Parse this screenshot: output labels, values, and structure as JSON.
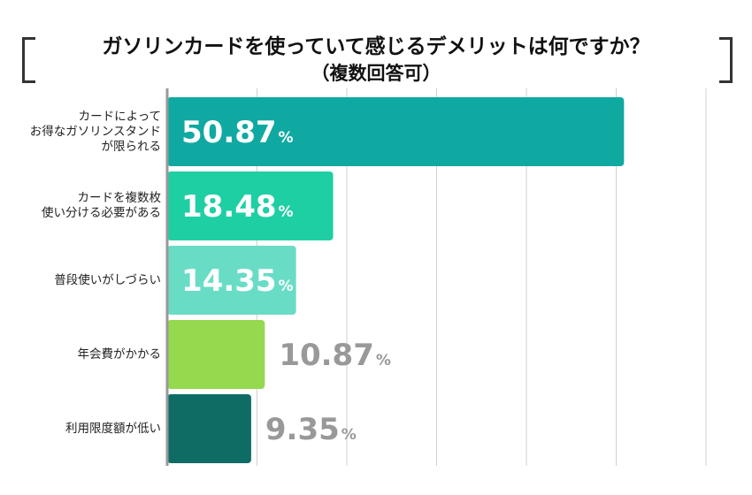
{
  "title": {
    "line1": "ガソリンカードを使っていて感じるデメリットは何ですか？",
    "line2": "（複数回答可）"
  },
  "colors": {
    "bars": [
      "#10a9a2",
      "#1fcfa4",
      "#69dcc6",
      "#95d94f",
      "#0f6c65"
    ],
    "label_inside": "#ffffff",
    "label_outside": "#999999",
    "axis": "#999999",
    "grid": "#d0d0d0"
  },
  "chart_data": {
    "type": "bar",
    "orientation": "horizontal",
    "categories": [
      [
        "カードによって",
        "お得なガソリンスタンド",
        "が限られる"
      ],
      [
        "カードを複数枚",
        "使い分ける必要がある"
      ],
      [
        "普段使いがしづらい"
      ],
      [
        "年会費がかかる"
      ],
      [
        "利用限度額が低い"
      ]
    ],
    "values": [
      50.87,
      18.48,
      14.35,
      10.87,
      9.35
    ],
    "value_labels": [
      "50.87",
      "18.48",
      "14.35",
      "10.87",
      "9.35"
    ],
    "unit": "%",
    "xlim": [
      0,
      60
    ],
    "grid": true,
    "legend": "none"
  }
}
